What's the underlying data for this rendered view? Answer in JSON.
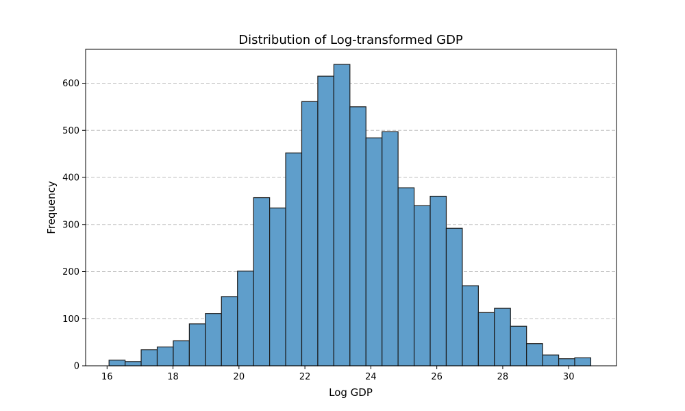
{
  "chart_data": {
    "type": "bar",
    "title": "Distribution of Log-transformed GDP",
    "xlabel": "Log GDP",
    "ylabel": "Frequency",
    "bin_width": 0.487,
    "x_start": 16.06,
    "values": [
      12,
      9,
      34,
      40,
      53,
      89,
      111,
      147,
      201,
      357,
      335,
      452,
      561,
      615,
      640,
      550,
      484,
      497,
      378,
      340,
      360,
      292,
      170,
      113,
      122,
      84,
      47,
      23,
      15,
      17
    ],
    "xlim": [
      15.35,
      31.45
    ],
    "ylim": [
      0,
      672
    ],
    "xticks": [
      16,
      18,
      20,
      22,
      24,
      26,
      28,
      30
    ],
    "yticks": [
      0,
      100,
      200,
      300,
      400,
      500,
      600
    ],
    "grid": "y-dashed",
    "bar_color": "#5f9ecb"
  }
}
